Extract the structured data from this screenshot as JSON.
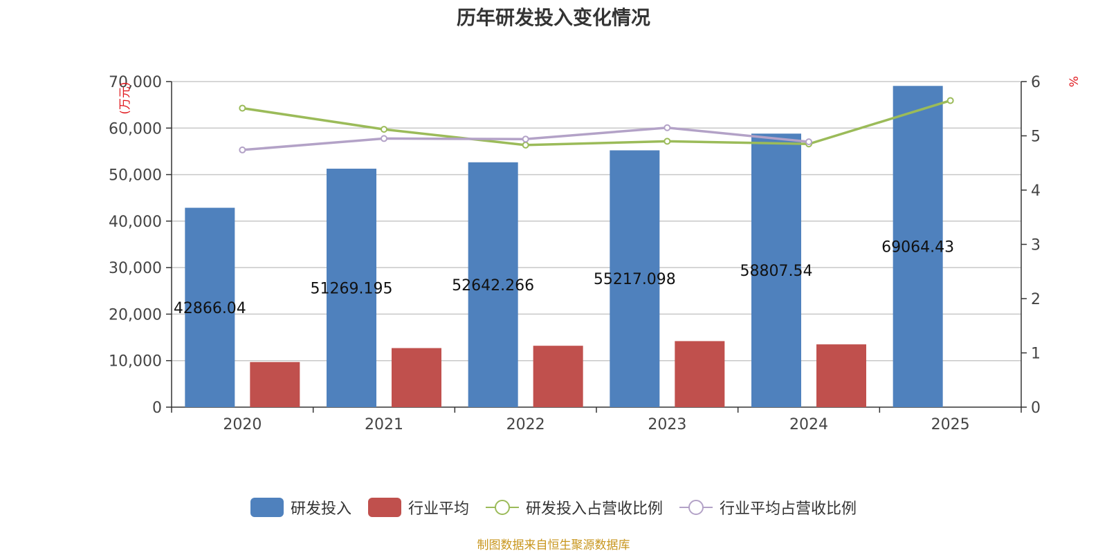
{
  "chart_data": {
    "type": "bar",
    "title": "历年研发投入变化情况",
    "categories": [
      "2020",
      "2021",
      "2022",
      "2023",
      "2024",
      "2025"
    ],
    "y_left": {
      "label": "(万元)",
      "min": 0,
      "max": 70000,
      "ticks": [
        "0",
        "10,000",
        "20,000",
        "30,000",
        "40,000",
        "50,000",
        "60,000",
        "70,000"
      ]
    },
    "y_right": {
      "label": "%",
      "min": 0,
      "max": 6,
      "ticks": [
        "0",
        "1",
        "2",
        "3",
        "4",
        "5",
        "6"
      ]
    },
    "grid": true,
    "legend_position": "bottom",
    "series": [
      {
        "name": "研发投入",
        "kind": "bar",
        "axis": "left",
        "color": "#4f81bd",
        "values": [
          42866.04,
          51269.195,
          52642.266,
          55217.098,
          58807.54,
          69064.43
        ],
        "labels": [
          "42866.04",
          "51269.195",
          "52642.266",
          "55217.098",
          "58807.54",
          "69064.43"
        ]
      },
      {
        "name": "行业平均",
        "kind": "bar",
        "axis": "left",
        "color": "#c0504d",
        "values": [
          9700,
          12700,
          13200,
          14200,
          13500,
          null
        ]
      },
      {
        "name": "研发投入占营收比例",
        "kind": "line",
        "axis": "right",
        "color": "#9bbb59",
        "values": [
          5.51,
          5.12,
          4.83,
          4.9,
          4.85,
          5.65
        ]
      },
      {
        "name": "行业平均占营收比例",
        "kind": "line",
        "axis": "right",
        "color": "#b3a2c7",
        "values": [
          4.74,
          4.95,
          4.94,
          5.15,
          4.89,
          null
        ]
      }
    ]
  },
  "source_note": "制图数据来自恒生聚源数据库"
}
